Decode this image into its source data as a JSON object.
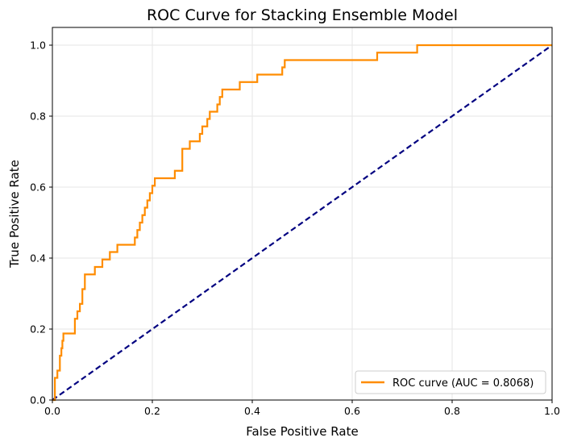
{
  "chart_data": {
    "type": "line",
    "title": "ROC Curve for Stacking Ensemble Model",
    "xlabel": "False Positive Rate",
    "ylabel": "True Positive Rate",
    "xlim": [
      0.0,
      1.0
    ],
    "ylim": [
      0.0,
      1.05
    ],
    "x_ticks": [
      "0.0",
      "0.2",
      "0.4",
      "0.6",
      "0.8",
      "1.0"
    ],
    "y_ticks": [
      "0.0",
      "0.2",
      "0.4",
      "0.6",
      "0.8",
      "1.0"
    ],
    "grid": true,
    "legend_position": "lower-right",
    "series": [
      {
        "name": "ROC curve (AUC = 0.8068)",
        "color": "#ff8c00",
        "style": "step",
        "x": [
          0.0,
          0.0,
          0.005,
          0.005,
          0.01,
          0.01,
          0.015,
          0.015,
          0.018,
          0.018,
          0.02,
          0.02,
          0.022,
          0.022,
          0.025,
          0.025,
          0.045,
          0.045,
          0.05,
          0.05,
          0.055,
          0.055,
          0.06,
          0.06,
          0.065,
          0.065,
          0.07,
          0.07,
          0.085,
          0.085,
          0.1,
          0.1,
          0.115,
          0.115,
          0.13,
          0.13,
          0.165,
          0.165,
          0.17,
          0.17,
          0.175,
          0.175,
          0.18,
          0.18,
          0.185,
          0.185,
          0.19,
          0.19,
          0.195,
          0.195,
          0.2,
          0.2,
          0.205,
          0.205,
          0.245,
          0.245,
          0.26,
          0.26,
          0.275,
          0.275,
          0.295,
          0.295,
          0.3,
          0.3,
          0.31,
          0.31,
          0.315,
          0.315,
          0.32,
          0.32,
          0.33,
          0.33,
          0.335,
          0.335,
          0.34,
          0.34,
          0.375,
          0.375,
          0.41,
          0.41,
          0.46,
          0.46,
          0.465,
          0.465,
          0.47,
          0.47,
          0.65,
          0.65,
          0.73,
          0.73,
          1.0
        ],
        "y": [
          0.0,
          0.0,
          0.0,
          0.0625,
          0.0625,
          0.083,
          0.083,
          0.125,
          0.125,
          0.146,
          0.146,
          0.167,
          0.167,
          0.1875,
          0.1875,
          0.1875,
          0.1875,
          0.229,
          0.229,
          0.25,
          0.25,
          0.271,
          0.271,
          0.3125,
          0.3125,
          0.354,
          0.354,
          0.354,
          0.354,
          0.375,
          0.375,
          0.396,
          0.396,
          0.417,
          0.417,
          0.4375,
          0.4375,
          0.458,
          0.458,
          0.479,
          0.479,
          0.5,
          0.5,
          0.521,
          0.521,
          0.542,
          0.542,
          0.5625,
          0.5625,
          0.583,
          0.583,
          0.604,
          0.604,
          0.625,
          0.625,
          0.646,
          0.646,
          0.708,
          0.708,
          0.729,
          0.729,
          0.75,
          0.75,
          0.771,
          0.771,
          0.792,
          0.792,
          0.8125,
          0.8125,
          0.8125,
          0.8125,
          0.833,
          0.833,
          0.854,
          0.854,
          0.875,
          0.875,
          0.896,
          0.896,
          0.917,
          0.917,
          0.9375,
          0.9375,
          0.958,
          0.958,
          0.958,
          0.958,
          0.979,
          0.979,
          1.0,
          1.0
        ]
      },
      {
        "color": "#000080",
        "style": "dashed",
        "x": [
          0.0,
          1.0
        ],
        "y": [
          0.0,
          1.0
        ]
      }
    ]
  }
}
